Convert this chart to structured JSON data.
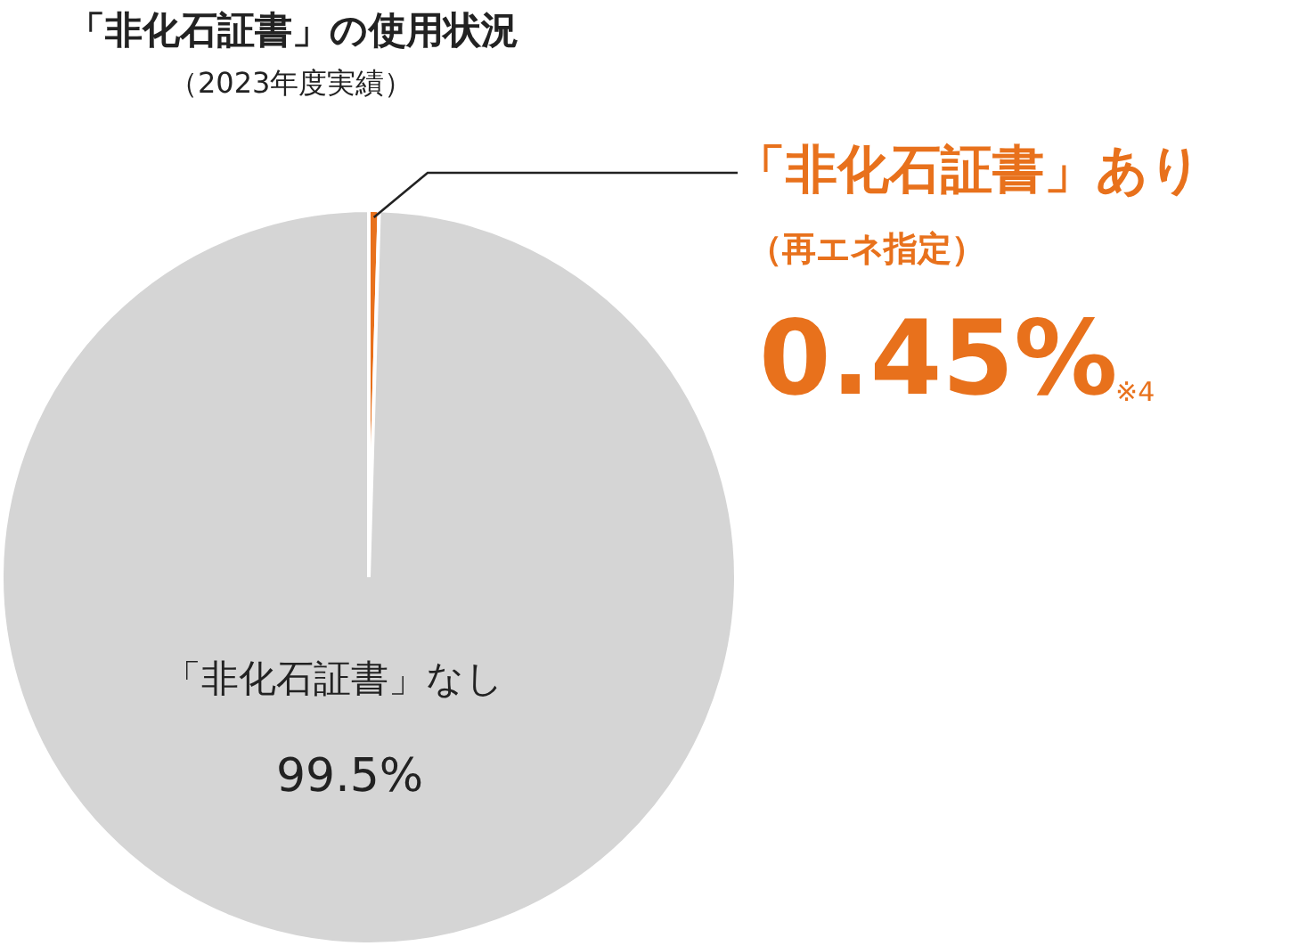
{
  "chart_data": {
    "type": "pie",
    "title": "「非化石証書」の使用状況",
    "subtitle": "（2023年度実績）",
    "categories": [
      "「非化石証書」あり",
      "「非化石証書」なし"
    ],
    "values": [
      0.45,
      99.5
    ],
    "colors": [
      "#e8711c",
      "#d5d5d5"
    ],
    "value_labels": [
      "0.45%",
      "99.5%"
    ],
    "annotations": [
      "（再エネ指定）",
      "※4"
    ]
  }
}
